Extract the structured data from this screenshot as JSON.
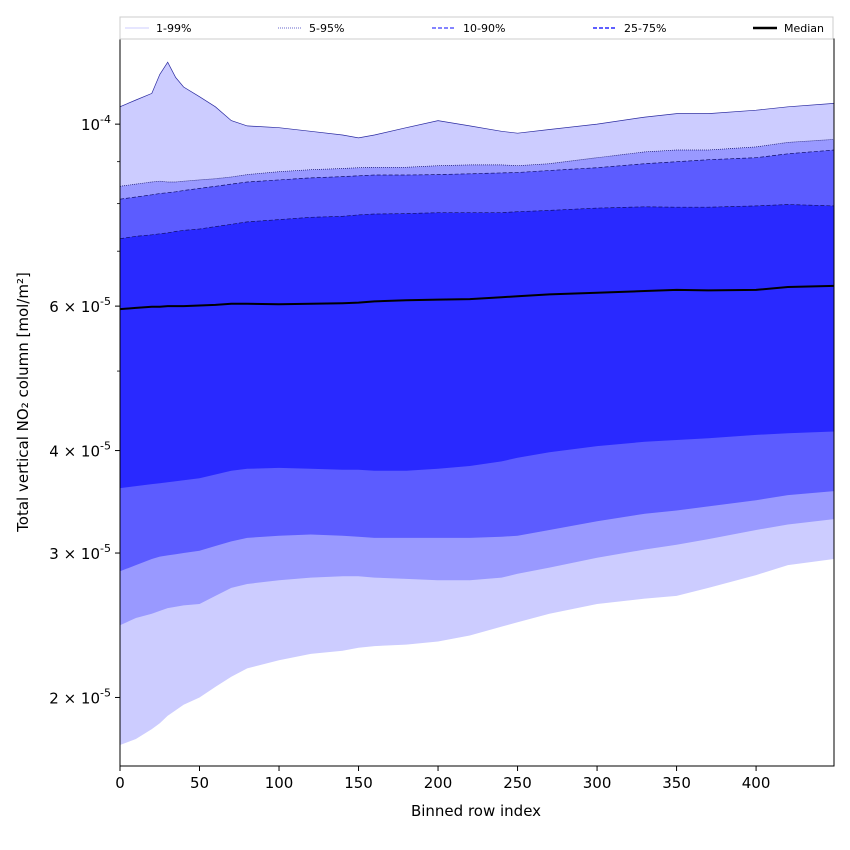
{
  "chart_data": {
    "type": "area",
    "xlabel": "Binned row index",
    "ylabel": "Total vertical NO₂ column [mol/m²]",
    "yscale": "log",
    "xlim": [
      0,
      449
    ],
    "ylim": [
      1.65e-05,
      0.000127
    ],
    "x_ticks": [
      0,
      50,
      100,
      150,
      200,
      250,
      300,
      350,
      400
    ],
    "x_tick_labels": [
      "0",
      "50",
      "100",
      "150",
      "200",
      "250",
      "300",
      "350",
      "400"
    ],
    "y_ticks": [
      {
        "value": 2e-05,
        "mantissa": "2",
        "exp": "-5"
      },
      {
        "value": 3e-05,
        "mantissa": "3",
        "exp": "-5"
      },
      {
        "value": 4e-05,
        "mantissa": "4",
        "exp": "-5"
      },
      {
        "value": 6e-05,
        "mantissa": "6",
        "exp": "-5"
      },
      {
        "value": 0.0001,
        "mantissa": "",
        "exp": "-4"
      }
    ],
    "y_minor_ticks": [
      5e-05,
      7e-05,
      8e-05,
      9e-05
    ],
    "grid": false,
    "legend_position": "top",
    "x": [
      0,
      10,
      20,
      25,
      30,
      35,
      40,
      50,
      60,
      70,
      80,
      100,
      120,
      140,
      150,
      160,
      180,
      200,
      220,
      240,
      250,
      270,
      300,
      330,
      350,
      370,
      400,
      420,
      449
    ],
    "bands": [
      {
        "name": "1-99%",
        "color": "#ccccff",
        "lower": [
          1.75e-05,
          1.78e-05,
          1.83e-05,
          1.86e-05,
          1.9e-05,
          1.93e-05,
          1.96e-05,
          2e-05,
          2.06e-05,
          2.12e-05,
          2.17e-05,
          2.22e-05,
          2.26e-05,
          2.28e-05,
          2.3e-05,
          2.31e-05,
          2.32e-05,
          2.34e-05,
          2.38e-05,
          2.44e-05,
          2.47e-05,
          2.53e-05,
          2.6e-05,
          2.64e-05,
          2.66e-05,
          2.72e-05,
          2.82e-05,
          2.9e-05,
          2.95e-05
        ],
        "upper": [
          0.000105,
          0.000107,
          0.000109,
          0.000115,
          0.000119,
          0.000114,
          0.000111,
          0.000108,
          0.000105,
          0.000101,
          9.95e-05,
          9.9e-05,
          9.8e-05,
          9.7e-05,
          9.62e-05,
          9.7e-05,
          9.9e-05,
          0.000101,
          9.95e-05,
          9.8e-05,
          9.75e-05,
          9.85e-05,
          0.0001,
          0.000102,
          0.000103,
          0.000103,
          0.000104,
          0.000105,
          0.000106
        ]
      },
      {
        "name": "5-95%",
        "color": "#9999ff",
        "lower": [
          2.45e-05,
          2.5e-05,
          2.53e-05,
          2.55e-05,
          2.57e-05,
          2.58e-05,
          2.59e-05,
          2.6e-05,
          2.66e-05,
          2.72e-05,
          2.75e-05,
          2.78e-05,
          2.8e-05,
          2.81e-05,
          2.81e-05,
          2.8e-05,
          2.79e-05,
          2.78e-05,
          2.78e-05,
          2.8e-05,
          2.83e-05,
          2.88e-05,
          2.96e-05,
          3.03e-05,
          3.07e-05,
          3.12e-05,
          3.2e-05,
          3.25e-05,
          3.3e-05
        ],
        "upper": [
          8.4e-05,
          8.45e-05,
          8.5e-05,
          8.52e-05,
          8.5e-05,
          8.5e-05,
          8.52e-05,
          8.55e-05,
          8.58e-05,
          8.62e-05,
          8.68e-05,
          8.75e-05,
          8.8e-05,
          8.83e-05,
          8.85e-05,
          8.86e-05,
          8.86e-05,
          8.9e-05,
          8.92e-05,
          8.92e-05,
          8.9e-05,
          8.95e-05,
          9.1e-05,
          9.25e-05,
          9.3e-05,
          9.3e-05,
          9.38e-05,
          9.5e-05,
          9.58e-05
        ]
      },
      {
        "name": "10-90%",
        "color": "#5c5cff",
        "lower": [
          2.85e-05,
          2.9e-05,
          2.95e-05,
          2.97e-05,
          2.98e-05,
          2.99e-05,
          3e-05,
          3.02e-05,
          3.06e-05,
          3.1e-05,
          3.13e-05,
          3.15e-05,
          3.16e-05,
          3.15e-05,
          3.14e-05,
          3.13e-05,
          3.13e-05,
          3.13e-05,
          3.13e-05,
          3.14e-05,
          3.15e-05,
          3.2e-05,
          3.28e-05,
          3.35e-05,
          3.38e-05,
          3.42e-05,
          3.48e-05,
          3.53e-05,
          3.57e-05
        ],
        "upper": [
          8.1e-05,
          8.15e-05,
          8.2e-05,
          8.23e-05,
          8.25e-05,
          8.27e-05,
          8.3e-05,
          8.35e-05,
          8.4e-05,
          8.45e-05,
          8.5e-05,
          8.55e-05,
          8.6e-05,
          8.63e-05,
          8.65e-05,
          8.67e-05,
          8.67e-05,
          8.68e-05,
          8.7e-05,
          8.72e-05,
          8.73e-05,
          8.78e-05,
          8.85e-05,
          8.95e-05,
          9e-05,
          9.05e-05,
          9.1e-05,
          9.2e-05,
          9.3e-05
        ]
      },
      {
        "name": "25-75%",
        "color": "#2929ff",
        "lower": [
          3.6e-05,
          3.62e-05,
          3.64e-05,
          3.65e-05,
          3.66e-05,
          3.67e-05,
          3.68e-05,
          3.7e-05,
          3.74e-05,
          3.78e-05,
          3.8e-05,
          3.81e-05,
          3.8e-05,
          3.79e-05,
          3.79e-05,
          3.78e-05,
          3.78e-05,
          3.8e-05,
          3.83e-05,
          3.88e-05,
          3.92e-05,
          3.98e-05,
          4.05e-05,
          4.1e-05,
          4.12e-05,
          4.14e-05,
          4.18e-05,
          4.2e-05,
          4.22e-05
        ],
        "upper": [
          7.25e-05,
          7.3e-05,
          7.33e-05,
          7.35e-05,
          7.37e-05,
          7.4e-05,
          7.42e-05,
          7.45e-05,
          7.5e-05,
          7.55e-05,
          7.6e-05,
          7.65e-05,
          7.7e-05,
          7.72e-05,
          7.75e-05,
          7.77e-05,
          7.78e-05,
          7.8e-05,
          7.8e-05,
          7.8e-05,
          7.82e-05,
          7.85e-05,
          7.9e-05,
          7.93e-05,
          7.92e-05,
          7.92e-05,
          7.95e-05,
          7.98e-05,
          7.95e-05
        ]
      }
    ],
    "median": {
      "name": "Median",
      "color": "#000000",
      "values": [
        5.95e-05,
        5.97e-05,
        5.99e-05,
        5.99e-05,
        6e-05,
        6e-05,
        6e-05,
        6.01e-05,
        6.02e-05,
        6.04e-05,
        6.04e-05,
        6.03e-05,
        6.04e-05,
        6.05e-05,
        6.06e-05,
        6.08e-05,
        6.1e-05,
        6.11e-05,
        6.12e-05,
        6.15e-05,
        6.17e-05,
        6.2e-05,
        6.23e-05,
        6.26e-05,
        6.28e-05,
        6.27e-05,
        6.28e-05,
        6.33e-05,
        6.35e-05
      ]
    },
    "legend": [
      {
        "label": "1-99%",
        "style": "thin-solid",
        "color": "#ccccff"
      },
      {
        "label": "5-95%",
        "style": "thin-dotted",
        "color": "#9999ff"
      },
      {
        "label": "10-90%",
        "style": "dashed",
        "color": "#5c5cff"
      },
      {
        "label": "25-75%",
        "style": "dashed",
        "color": "#2929ff"
      },
      {
        "label": "Median",
        "style": "solid-thick",
        "color": "#000000"
      }
    ]
  }
}
